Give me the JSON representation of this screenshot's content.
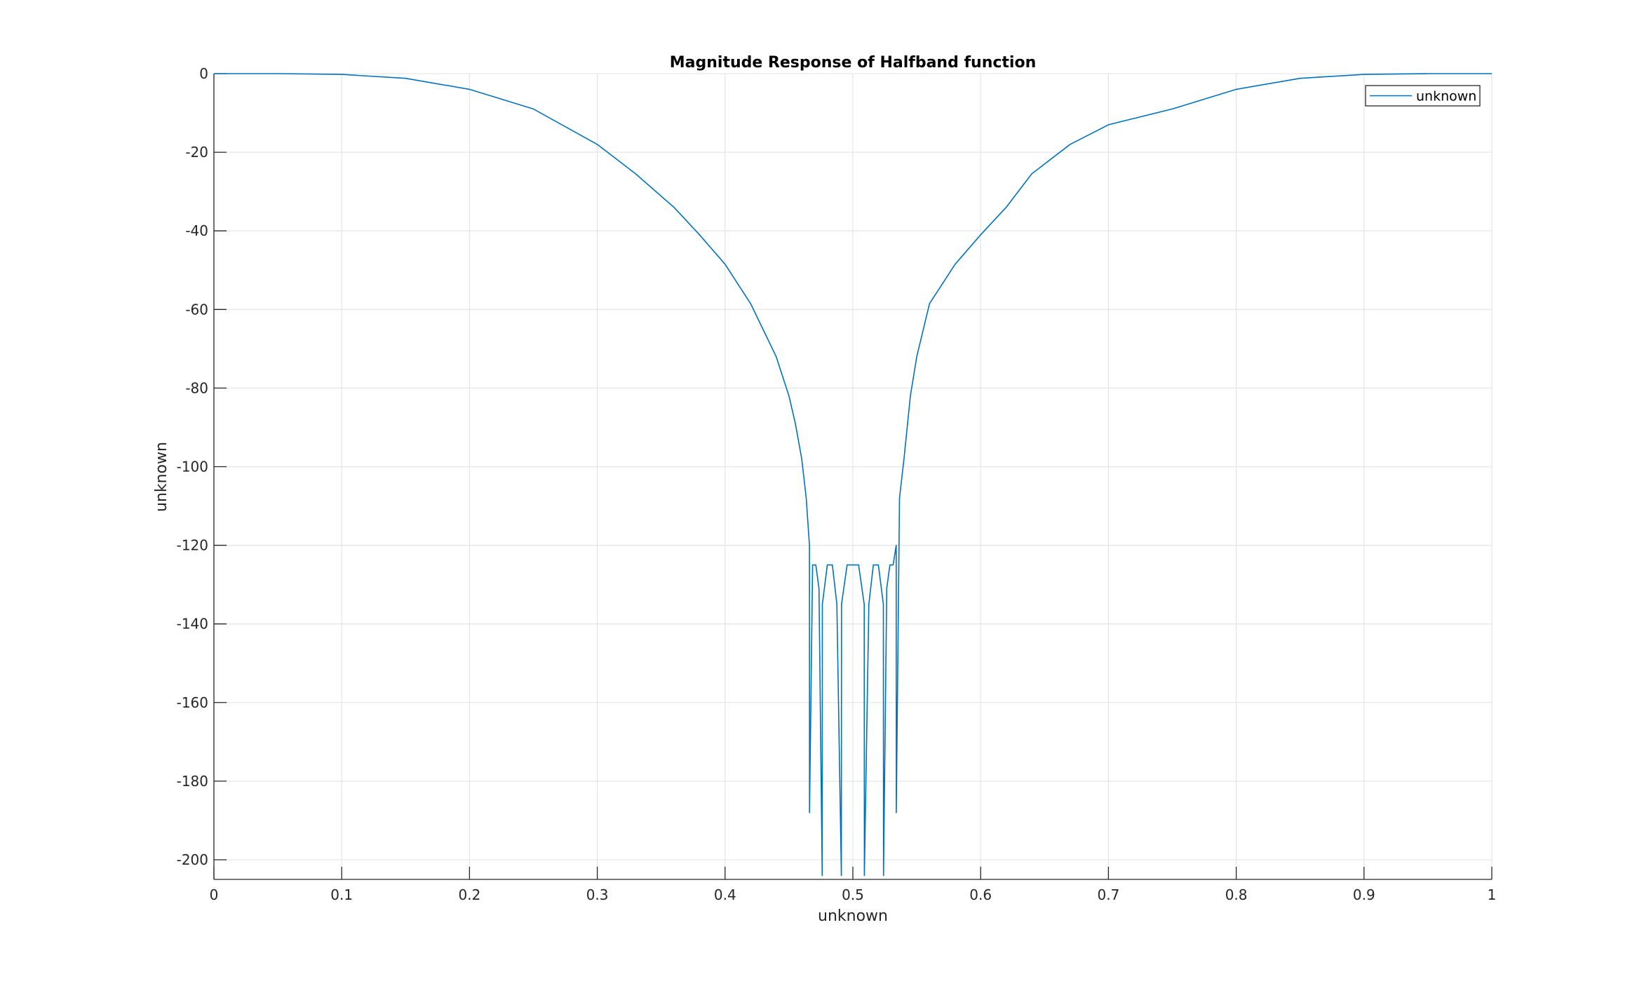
{
  "chart_data": {
    "type": "line",
    "title": "Magnitude Response of Halfband function",
    "xlabel": "unknown",
    "ylabel": "unknown",
    "xlim": [
      0,
      1
    ],
    "ylim": [
      -205,
      0
    ],
    "xticks": [
      0,
      0.1,
      0.2,
      0.3,
      0.4,
      0.5,
      0.6,
      0.7,
      0.8,
      0.9,
      1
    ],
    "xtick_labels": [
      "0",
      "0.1",
      "0.2",
      "0.3",
      "0.4",
      "0.5",
      "0.6",
      "0.7",
      "0.8",
      "0.9",
      "1"
    ],
    "yticks": [
      0,
      -20,
      -40,
      -60,
      -80,
      -100,
      -120,
      -140,
      -160,
      -180,
      -200
    ],
    "ytick_labels": [
      "0",
      "-20",
      "-40",
      "-60",
      "-80",
      "-100",
      "-120",
      "-140",
      "-160",
      "-180",
      "-200"
    ],
    "grid": true,
    "legend_position": "top-right",
    "series": [
      {
        "name": "unknown",
        "color": "#0072BD",
        "x": [
          0,
          0.05,
          0.1,
          0.15,
          0.2,
          0.25,
          0.3,
          0.33,
          0.36,
          0.38,
          0.4,
          0.42,
          0.44,
          0.45,
          0.455,
          0.46,
          0.4635,
          0.466,
          0.4661,
          0.4685,
          0.471,
          0.4735,
          0.476,
          0.4761,
          0.48,
          0.484,
          0.4875,
          0.491,
          0.4911,
          0.4955,
          0.5,
          0.5045,
          0.5089,
          0.509,
          0.5125,
          0.516,
          0.52,
          0.5239,
          0.524,
          0.5265,
          0.529,
          0.5315,
          0.5339,
          0.534,
          0.5365,
          0.54,
          0.545,
          0.55,
          0.56,
          0.58,
          0.6,
          0.62,
          0.64,
          0.67,
          0.7,
          0.75,
          0.8,
          0.85,
          0.9,
          0.95,
          1
        ],
        "y": [
          0,
          0,
          -0.2,
          -1.2,
          -4,
          -9,
          -18,
          -25.5,
          -34,
          -41,
          -48.5,
          -58.5,
          -72,
          -82,
          -89,
          -98,
          -108,
          -120,
          -188,
          -125,
          -125,
          -131,
          -204,
          -135,
          -125,
          -125,
          -135,
          -204,
          -135,
          -125,
          -125,
          -125,
          -135,
          -204,
          -135,
          -125,
          -125,
          -135,
          -204,
          -131,
          -125,
          -125,
          -120,
          -188,
          -108,
          -98,
          -82,
          -72,
          -58.5,
          -48.5,
          -41,
          -34,
          -25.5,
          -18,
          -13,
          -9,
          -4,
          -1.2,
          -0.2,
          0,
          0
        ]
      }
    ]
  }
}
